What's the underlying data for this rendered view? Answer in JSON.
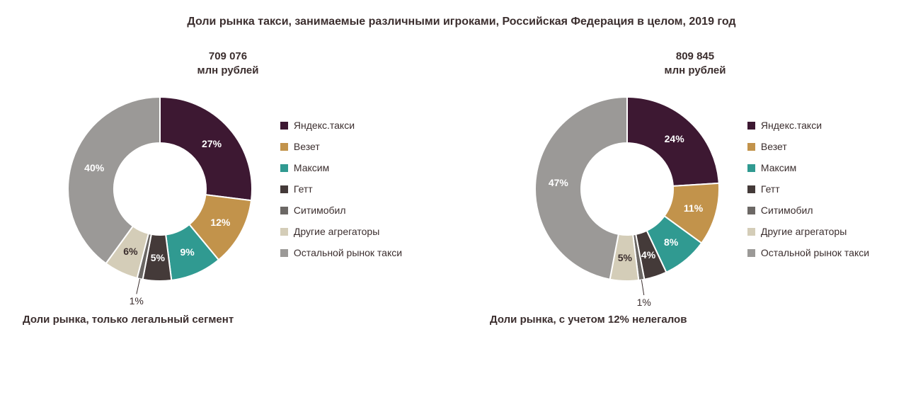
{
  "title": "Доли рынка такси, занимаемые различными игроками, Российская Федерация в целом, 2019 год",
  "legend_labels": [
    "Яндекс.такси",
    "Везет",
    "Максим",
    "Гетт",
    "Ситимобил",
    "Другие агрегаторы",
    "Остальной рынок такси"
  ],
  "series_colors": [
    "#3d1832",
    "#c2934b",
    "#309a91",
    "#443a39",
    "#6c6865",
    "#d4cdb8",
    "#9b9997"
  ],
  "background_color": "#ffffff",
  "title_color": "#3b2e2e",
  "title_fontsize": 16,
  "label_fontsize": 14,
  "donut": {
    "outer_radius": 130,
    "inner_radius": 65,
    "start_angle": -90,
    "border_color": "#ffffff",
    "border_width": 2
  },
  "charts": [
    {
      "total_value": "709 076",
      "total_unit": "млн рублей",
      "subtitle": "Доли рынка, только легальный сегмент",
      "values": [
        27,
        12,
        9,
        5,
        1,
        6,
        40
      ],
      "label_inside": [
        true,
        true,
        true,
        true,
        false,
        true,
        true
      ],
      "label_text_color_inside": [
        "#ffffff",
        "#ffffff",
        "#ffffff",
        "#ffffff",
        "#3b2e2e",
        "#3b2e2e",
        "#ffffff"
      ]
    },
    {
      "total_value": "809 845",
      "total_unit": "млн рублей",
      "subtitle": "Доли рынка, с учетом 12% нелегалов",
      "values": [
        24,
        11,
        8,
        4,
        1,
        5,
        47
      ],
      "label_inside": [
        true,
        true,
        true,
        true,
        false,
        true,
        true
      ],
      "label_text_color_inside": [
        "#ffffff",
        "#ffffff",
        "#ffffff",
        "#ffffff",
        "#3b2e2e",
        "#3b2e2e",
        "#ffffff"
      ]
    }
  ]
}
